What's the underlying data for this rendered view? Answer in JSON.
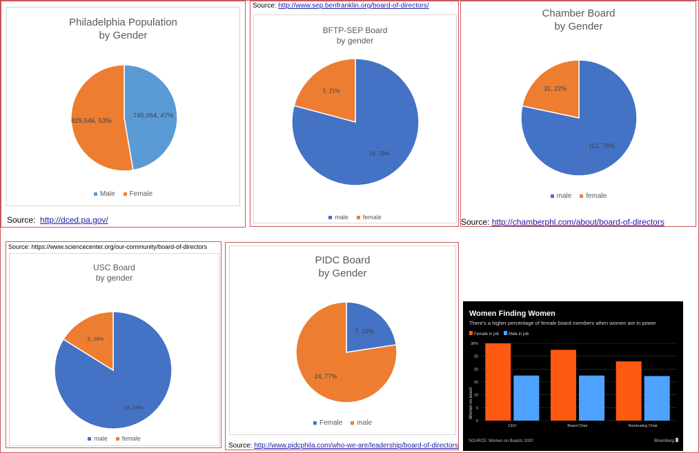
{
  "colors": {
    "light_blue": "#5b9bd5",
    "blue": "#4472c4",
    "orange": "#ed7d31",
    "bloomberg_orange": "#ff5a12",
    "bloomberg_blue": "#4da3ff"
  },
  "chart_data": [
    {
      "id": "philly",
      "type": "pie",
      "title_lines": [
        "Philadelphia Population",
        "by Gender"
      ],
      "slices": [
        {
          "name": "Male",
          "value": 745064,
          "percent": 47,
          "label": "745,064, 47%",
          "color": "#5b9bd5"
        },
        {
          "name": "Female",
          "value": 829546,
          "percent": 53,
          "label": "829,546, 53%",
          "color": "#ed7d31"
        }
      ],
      "legend": [
        "Male",
        "Female"
      ],
      "legend_position": "bottom",
      "source_prefix": "Source:",
      "source_link": "http://dced.pa.gov/"
    },
    {
      "id": "bftp",
      "type": "pie",
      "title_lines": [
        "BFTP-SEP Board",
        "by gender"
      ],
      "slices": [
        {
          "name": "male",
          "value": 19,
          "percent": 79,
          "label": "19, 79%",
          "color": "#4472c4"
        },
        {
          "name": "female",
          "value": 5,
          "percent": 21,
          "label": "5, 21%",
          "color": "#ed7d31"
        }
      ],
      "legend": [
        "male",
        "female"
      ],
      "legend_position": "bottom",
      "source_prefix": "Source:",
      "source_link": "http://www.sep.benfranklin.org/board-of-directors/"
    },
    {
      "id": "chamber",
      "type": "pie",
      "title_lines": [
        "Chamber Board",
        "by Gender"
      ],
      "slices": [
        {
          "name": "male",
          "value": 112,
          "percent": 78,
          "label": "112, 78%",
          "color": "#4472c4"
        },
        {
          "name": "female",
          "value": 31,
          "percent": 22,
          "label": "31, 22%",
          "color": "#ed7d31"
        }
      ],
      "legend": [
        "male",
        "female"
      ],
      "legend_position": "bottom",
      "source_prefix": "Source:",
      "source_link": "http://chamberphl.com/about/board-of-directors"
    },
    {
      "id": "usc",
      "type": "pie",
      "title_lines": [
        "USC Board",
        "by gender"
      ],
      "slices": [
        {
          "name": "male",
          "value": 26,
          "percent": 84,
          "label": "26, 84%",
          "color": "#4472c4"
        },
        {
          "name": "female",
          "value": 5,
          "percent": 16,
          "label": "5, 16%",
          "color": "#ed7d31"
        }
      ],
      "legend": [
        "male",
        "female"
      ],
      "legend_position": "bottom",
      "source_text": "Source: https://www.sciencecenter.org/our-community/board-of-directors"
    },
    {
      "id": "pidc",
      "type": "pie",
      "title_lines": [
        "PIDC Board",
        "by Gender"
      ],
      "slices": [
        {
          "name": "Female",
          "value": 7,
          "percent": 23,
          "label": "7, 23%",
          "color": "#4472c4"
        },
        {
          "name": "male",
          "value": 24,
          "percent": 77,
          "label": "24, 77%",
          "color": "#ed7d31"
        }
      ],
      "legend": [
        "Female",
        "male"
      ],
      "legend_position": "bottom",
      "source_prefix": "Source:",
      "source_link": "http://www.pidcphila.com/who-we-are/leadership/board-of-directors"
    },
    {
      "id": "bloomberg",
      "type": "bar",
      "title": "Women Finding Women",
      "subtitle": "There's a higher percentage of female board members when women are in power",
      "categories": [
        "CEO",
        "Board Chair",
        "Nominating Chair"
      ],
      "series": [
        {
          "name": "Female in job",
          "values": [
            30,
            27.5,
            23
          ],
          "color": "#ff5a12"
        },
        {
          "name": "Male in job",
          "values": [
            17.5,
            17.5,
            17.3
          ],
          "color": "#4da3ff"
        }
      ],
      "ylabel": "Women on board",
      "ylim": [
        0,
        30
      ],
      "yticks": [
        "0",
        "5",
        "10",
        "15",
        "20",
        "25",
        "30%"
      ],
      "legend_position": "top-left",
      "source": "SOURCE: Women on Boards 2020",
      "brand": "Bloomberg"
    }
  ]
}
